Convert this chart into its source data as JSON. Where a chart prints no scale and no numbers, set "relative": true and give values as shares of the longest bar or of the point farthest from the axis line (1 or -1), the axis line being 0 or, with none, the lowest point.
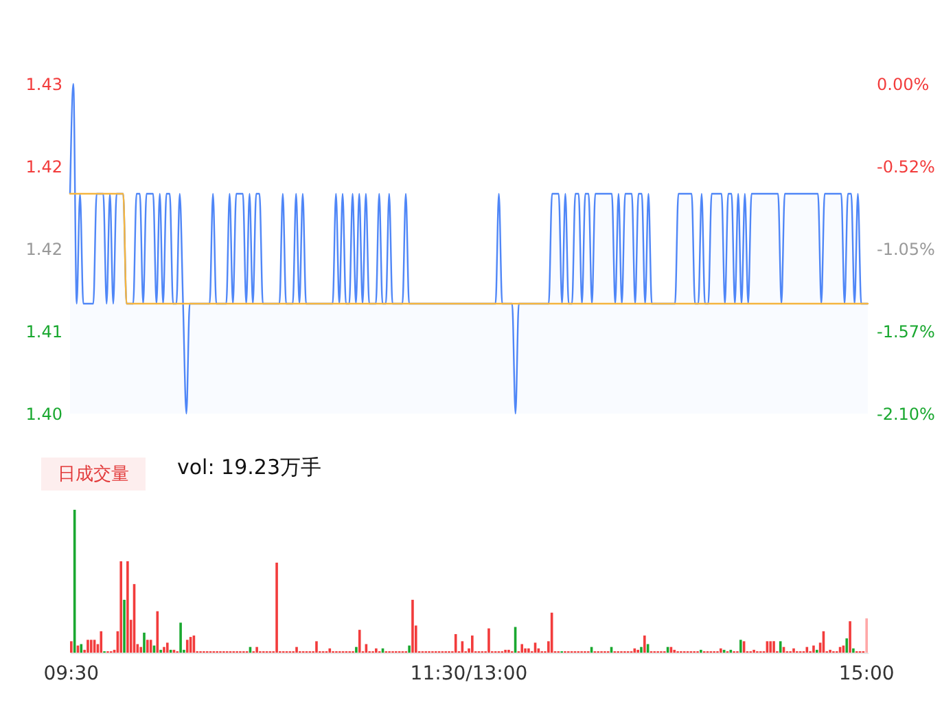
{
  "chart_data": [
    {
      "type": "line",
      "ylim": [
        1.4,
        1.43
      ],
      "yticks": [
        1.43,
        {
          "value": 1.4225,
          "label": "1.42"
        },
        {
          "value": 1.415,
          "label": "1.42"
        },
        {
          "value": 1.4075,
          "label": "1.41"
        },
        {
          "value": 1.4,
          "label": "1.40"
        }
      ],
      "y2lim": [
        -2.1,
        0
      ],
      "y2ticks": [
        {
          "value": 0,
          "label": "0.00%"
        },
        {
          "value": -0.525,
          "label": "-0.52%"
        },
        {
          "value": -1.05,
          "label": "-1.05%"
        },
        {
          "value": -1.575,
          "label": "-1.57%"
        },
        {
          "value": -2.1,
          "label": "-2.10%"
        }
      ],
      "tick_labels": "y",
      "categories": [
        null,
        null,
        null,
        null,
        null,
        null,
        null,
        null,
        null,
        null,
        null,
        null,
        null,
        null,
        null,
        null,
        null,
        null,
        null,
        null,
        null,
        null,
        null,
        null,
        null,
        null,
        null,
        null,
        null,
        null,
        null,
        null,
        null,
        null,
        null,
        null,
        null,
        null,
        null,
        null,
        null,
        null,
        null,
        null,
        null,
        null,
        null,
        null,
        null,
        null,
        null,
        null,
        null,
        null,
        null,
        null,
        null,
        null,
        null,
        null,
        null,
        null,
        null,
        null,
        null,
        null,
        null,
        null,
        null,
        null,
        null,
        null,
        null,
        null,
        null,
        null,
        null,
        null,
        null,
        null,
        null,
        null,
        null,
        null,
        null,
        null,
        null,
        null,
        null,
        null,
        null,
        null,
        null,
        null,
        null,
        null,
        null,
        null,
        null,
        null,
        null,
        null,
        null,
        null,
        null,
        null,
        null,
        null,
        null,
        null,
        null,
        null,
        null,
        null,
        null,
        null,
        null,
        null,
        null,
        null,
        null,
        null,
        null,
        null,
        null,
        null,
        null,
        null,
        null,
        null,
        null,
        null,
        null,
        null,
        null,
        null,
        null,
        null,
        null,
        null,
        null,
        null,
        null,
        null,
        null,
        null,
        null,
        null,
        null,
        null,
        null,
        null,
        null,
        null,
        null,
        null,
        null,
        null,
        null,
        null,
        null,
        null,
        null,
        null,
        null,
        null,
        null,
        null,
        null,
        null,
        null,
        null,
        null,
        null,
        null,
        null,
        null,
        null,
        null,
        null,
        null,
        null,
        null,
        null,
        null,
        null,
        null,
        null,
        null,
        null,
        null,
        null,
        null,
        null,
        null,
        null,
        null,
        null,
        null,
        null,
        null,
        null,
        null,
        null,
        null,
        null,
        null,
        null,
        null,
        null,
        null,
        null,
        null,
        null,
        null,
        null,
        null,
        null,
        null,
        null,
        null,
        null,
        null,
        null,
        null,
        null,
        null,
        null,
        null,
        null,
        null,
        null,
        null,
        null,
        null,
        null,
        null,
        null,
        null,
        null,
        null
      ],
      "series": [
        {
          "type": "area",
          "color": "#4f86f7",
          "values": [
            1.42,
            1.43,
            1.41,
            1.42,
            1.41,
            1.41,
            1.41,
            1.41,
            1.42,
            1.42,
            1.42,
            1.41,
            1.42,
            1.41,
            1.42,
            1.42,
            1.42,
            1.41,
            1.41,
            1.41,
            1.42,
            1.42,
            1.41,
            1.42,
            1.42,
            1.42,
            1.41,
            1.42,
            1.41,
            1.42,
            1.42,
            1.41,
            1.41,
            1.42,
            1.41,
            1.4,
            1.41,
            1.41,
            1.41,
            1.41,
            1.41,
            1.41,
            1.41,
            1.42,
            1.41,
            1.41,
            1.41,
            1.41,
            1.42,
            1.41,
            1.42,
            1.42,
            1.42,
            1.41,
            1.42,
            1.41,
            1.42,
            1.42,
            1.41,
            1.41,
            1.41,
            1.41,
            1.41,
            1.41,
            1.42,
            1.41,
            1.41,
            1.41,
            1.42,
            1.41,
            1.42,
            1.41,
            1.41,
            1.41,
            1.41,
            1.41,
            1.41,
            1.41,
            1.41,
            1.41,
            1.42,
            1.41,
            1.42,
            1.41,
            1.41,
            1.42,
            1.41,
            1.42,
            1.41,
            1.42,
            1.41,
            1.41,
            1.41,
            1.42,
            1.41,
            1.41,
            1.42,
            1.41,
            1.41,
            1.41,
            1.41,
            1.42,
            1.41,
            1.41,
            1.41,
            1.41,
            1.41,
            1.41,
            1.41,
            1.41,
            1.41,
            1.41,
            1.41,
            1.41,
            1.41,
            1.41,
            1.41,
            1.41,
            1.41,
            1.41,
            1.41,
            1.41,
            1.41,
            1.41,
            1.41,
            1.41,
            1.41,
            1.41,
            1.41,
            1.42,
            1.41,
            1.41,
            1.41,
            1.41,
            1.4,
            1.41,
            1.41,
            1.41,
            1.41,
            1.41,
            1.41,
            1.41,
            1.41,
            1.41,
            1.41,
            1.42,
            1.42,
            1.42,
            1.41,
            1.42,
            1.41,
            1.41,
            1.42,
            1.42,
            1.41,
            1.42,
            1.42,
            1.41,
            1.42,
            1.42,
            1.42,
            1.42,
            1.42,
            1.42,
            1.41,
            1.42,
            1.41,
            1.42,
            1.42,
            1.42,
            1.41,
            1.42,
            1.42,
            1.41,
            1.42,
            1.41,
            1.41,
            1.41,
            1.41,
            1.41,
            1.41,
            1.41,
            1.41,
            1.42,
            1.42,
            1.42,
            1.42,
            1.42,
            1.41,
            1.41,
            1.42,
            1.41,
            1.41,
            1.42,
            1.42,
            1.42,
            1.42,
            1.41,
            1.42,
            1.42,
            1.41,
            1.42,
            1.41,
            1.42,
            1.41,
            1.42,
            1.42,
            1.42,
            1.42,
            1.42,
            1.42,
            1.42,
            1.42,
            1.42,
            1.41,
            1.42,
            1.42,
            1.42,
            1.42,
            1.42,
            1.42,
            1.42,
            1.42,
            1.42,
            1.42,
            1.42,
            1.41,
            1.42,
            1.42,
            1.42,
            1.42,
            1.42,
            1.42,
            1.41,
            1.42,
            1.42,
            1.41,
            1.42,
            1.41,
            1.41,
            1.41
          ]
        },
        {
          "type": "line",
          "color": "#f5b53f",
          "values": [
            1.42,
            1.42,
            1.42,
            1.42,
            1.42,
            1.42,
            1.42,
            1.42,
            1.42,
            1.42,
            1.42,
            1.42,
            1.42,
            1.42,
            1.42,
            1.42,
            1.42,
            1.41,
            1.41,
            1.41,
            1.41,
            1.41,
            1.41,
            1.41,
            1.41,
            1.41,
            1.41,
            1.41,
            1.41,
            1.41,
            1.41,
            1.41,
            1.41,
            1.41,
            1.41,
            1.41,
            1.41,
            1.41,
            1.41,
            1.41,
            1.41,
            1.41,
            1.41,
            1.41,
            1.41,
            1.41,
            1.41,
            1.41,
            1.41,
            1.41,
            1.41,
            1.41,
            1.41,
            1.41,
            1.41,
            1.41,
            1.41,
            1.41,
            1.41,
            1.41,
            1.41,
            1.41,
            1.41,
            1.41,
            1.41,
            1.41,
            1.41,
            1.41,
            1.41,
            1.41,
            1.41,
            1.41,
            1.41,
            1.41,
            1.41,
            1.41,
            1.41,
            1.41,
            1.41,
            1.41,
            1.41,
            1.41,
            1.41,
            1.41,
            1.41,
            1.41,
            1.41,
            1.41,
            1.41,
            1.41,
            1.41,
            1.41,
            1.41,
            1.41,
            1.41,
            1.41,
            1.41,
            1.41,
            1.41,
            1.41,
            1.41,
            1.41,
            1.41,
            1.41,
            1.41,
            1.41,
            1.41,
            1.41,
            1.41,
            1.41,
            1.41,
            1.41,
            1.41,
            1.41,
            1.41,
            1.41,
            1.41,
            1.41,
            1.41,
            1.41,
            1.41,
            1.41,
            1.41,
            1.41,
            1.41,
            1.41,
            1.41,
            1.41,
            1.41,
            1.41,
            1.41,
            1.41,
            1.41,
            1.41,
            1.41,
            1.41,
            1.41,
            1.41,
            1.41,
            1.41,
            1.41,
            1.41,
            1.41,
            1.41,
            1.41,
            1.41,
            1.41,
            1.41,
            1.41,
            1.41,
            1.41,
            1.41,
            1.41,
            1.41,
            1.41,
            1.41,
            1.41,
            1.41,
            1.41,
            1.41,
            1.41,
            1.41,
            1.41,
            1.41,
            1.41,
            1.41,
            1.41,
            1.41,
            1.41,
            1.41,
            1.41,
            1.41,
            1.41,
            1.41,
            1.41,
            1.41,
            1.41,
            1.41,
            1.41,
            1.41,
            1.41,
            1.41,
            1.41,
            1.41,
            1.41,
            1.41,
            1.41,
            1.41,
            1.41,
            1.41,
            1.41,
            1.41,
            1.41,
            1.41,
            1.41,
            1.41,
            1.41,
            1.41,
            1.41,
            1.41,
            1.41,
            1.41,
            1.41,
            1.41,
            1.41,
            1.41,
            1.41,
            1.41,
            1.41,
            1.41,
            1.41,
            1.41,
            1.41,
            1.41,
            1.41,
            1.41,
            1.41,
            1.41,
            1.41,
            1.41,
            1.41,
            1.41,
            1.41,
            1.41,
            1.41,
            1.41,
            1.41,
            1.41,
            1.41,
            1.41,
            1.41,
            1.41,
            1.41,
            1.41,
            1.41,
            1.41,
            1.41,
            1.41,
            1.41,
            1.41,
            1.41
          ]
        }
      ]
    },
    {
      "type": "bar",
      "relative": true,
      "annotations": [
        "日成交量",
        "vol: 19.23万手"
      ],
      "categories": [
        "09:30",
        null,
        null,
        null,
        null,
        null,
        null,
        null,
        null,
        null,
        null,
        null,
        null,
        null,
        null,
        null,
        null,
        null,
        null,
        null,
        null,
        null,
        null,
        null,
        null,
        null,
        null,
        null,
        null,
        null,
        null,
        null,
        null,
        null,
        null,
        null,
        null,
        null,
        null,
        null,
        null,
        null,
        null,
        null,
        null,
        null,
        null,
        null,
        null,
        null,
        null,
        null,
        null,
        null,
        null,
        null,
        null,
        null,
        null,
        null,
        null,
        null,
        null,
        null,
        null,
        null,
        null,
        null,
        null,
        null,
        null,
        null,
        null,
        null,
        null,
        null,
        null,
        null,
        null,
        null,
        null,
        null,
        null,
        null,
        null,
        null,
        null,
        null,
        null,
        null,
        null,
        null,
        null,
        null,
        null,
        null,
        null,
        null,
        null,
        null,
        null,
        null,
        null,
        null,
        null,
        null,
        null,
        null,
        null,
        null,
        null,
        null,
        null,
        null,
        null,
        null,
        null,
        null,
        null,
        null,
        "11:30/13:00",
        null,
        null,
        null,
        null,
        null,
        null,
        null,
        null,
        null,
        null,
        null,
        null,
        null,
        null,
        null,
        null,
        null,
        null,
        null,
        null,
        null,
        null,
        null,
        null,
        null,
        null,
        null,
        null,
        null,
        null,
        null,
        null,
        null,
        null,
        null,
        null,
        null,
        null,
        null,
        null,
        null,
        null,
        null,
        null,
        null,
        null,
        null,
        null,
        null,
        null,
        null,
        null,
        null,
        null,
        null,
        null,
        null,
        null,
        null,
        null,
        null,
        null,
        null,
        null,
        null,
        null,
        null,
        null,
        null,
        null,
        null,
        null,
        null,
        null,
        null,
        null,
        null,
        null,
        null,
        null,
        null,
        null,
        null,
        null,
        null,
        null,
        null,
        null,
        null,
        null,
        null,
        null,
        null,
        null,
        null,
        null,
        null,
        null,
        null,
        null,
        null,
        null,
        null,
        null,
        null,
        null,
        null,
        null,
        null,
        null,
        null,
        null,
        null,
        null,
        null,
        null,
        null,
        null,
        null,
        "15:00"
      ],
      "values": [
        0.08,
        1,
        0.05,
        0.06,
        0.02,
        0.09,
        0.09,
        0.09,
        0.06,
        0.15,
        0.01,
        0.01,
        0.01,
        0.02,
        0.15,
        0.64,
        0.37,
        0.64,
        0.23,
        0.48,
        0.06,
        0.04,
        0.14,
        0.09,
        0.09,
        0.05,
        0.29,
        0.02,
        0.04,
        0.07,
        0.02,
        0.02,
        0.01,
        0.21,
        0.02,
        0.09,
        0.11,
        0.12,
        0.01,
        0.01,
        0.01,
        0.01,
        0.01,
        0.01,
        0.01,
        0.01,
        0.01,
        0.01,
        0.01,
        0.01,
        0.01,
        0.01,
        0.01,
        0.01,
        0.04,
        0.01,
        0.04,
        0.01,
        0.01,
        0.01,
        0.01,
        0.01,
        0.63,
        0.01,
        0.01,
        0.01,
        0.01,
        0.01,
        0.04,
        0.01,
        0.01,
        0.01,
        0.01,
        0.01,
        0.08,
        0.01,
        0.01,
        0.01,
        0.03,
        0.01,
        0.01,
        0.01,
        0.01,
        0.01,
        0.01,
        0.01,
        0.04,
        0.16,
        0.01,
        0.06,
        0.01,
        0.01,
        0.03,
        0.01,
        0.03,
        0.01,
        0.01,
        0.01,
        0.01,
        0.01,
        0.01,
        0.01,
        0.05,
        0.37,
        0.19,
        0.01,
        0.01,
        0.01,
        0.01,
        0.01,
        0.01,
        0.01,
        0.01,
        0.01,
        0.01,
        0.01,
        0.13,
        0.01,
        0.08,
        0.01,
        0.03,
        0.12,
        0.01,
        0.01,
        0.01,
        0.01,
        0.17,
        0.01,
        0.01,
        0.01,
        0.01,
        0.02,
        0.02,
        0.01,
        0.18,
        0.01,
        0.06,
        0.03,
        0.03,
        0.01,
        0.07,
        0.03,
        0.01,
        0.01,
        0.08,
        0.28,
        0.01,
        0.01,
        0.01,
        0.01,
        0.01,
        0.01,
        0.01,
        0.01,
        0.01,
        0.01,
        0.01,
        0.04,
        0.01,
        0.01,
        0.01,
        0.01,
        0.01,
        0.04,
        0.01,
        0.01,
        0.01,
        0.01,
        0.01,
        0.01,
        0.03,
        0.02,
        0.04,
        0.12,
        0.06,
        0.01,
        0.01,
        0.01,
        0.01,
        0.01,
        0.04,
        0.04,
        0.02,
        0.01,
        0.01,
        0.01,
        0.01,
        0.01,
        0.01,
        0.01,
        0.02,
        0.01,
        0.01,
        0.01,
        0.01,
        0.01,
        0.03,
        0.02,
        0.01,
        0.02,
        0.01,
        0.01,
        0.09,
        0.08,
        0.01,
        0.01,
        0.02,
        0.01,
        0.01,
        0.01,
        0.08,
        0.08,
        0.08,
        0.01,
        0.08,
        0.04,
        0.01,
        0.01,
        0.03,
        0.01,
        0.01,
        0.01,
        0.04,
        0.01,
        0.05,
        0.02,
        0.07,
        0.15,
        0.01,
        0.02,
        0.01,
        0.01,
        0.04,
        0.05,
        0.1,
        0.22,
        0.03,
        0.01,
        0.01,
        0.01,
        0.24
      ],
      "colors": [
        "#f23c3c",
        "#1aa830",
        "#f23c3c",
        "#1aa830",
        "#f23c3c",
        "#f23c3c",
        "#f23c3c",
        "#f23c3c",
        "#f23c3c",
        "#f23c3c",
        "#1aa830",
        "#f23c3c",
        "#f23c3c",
        "#f23c3c",
        "#f23c3c",
        "#f23c3c",
        "#1aa830",
        "#f23c3c",
        "#f23c3c",
        "#f23c3c",
        "#f23c3c",
        "#f23c3c",
        "#1aa830",
        "#f23c3c",
        "#f23c3c",
        "#1aa830",
        "#f23c3c",
        "#1aa830",
        "#f23c3c",
        "#f23c3c",
        "#1aa830",
        "#f23c3c",
        "#f23c3c",
        "#1aa830",
        "#1aa830",
        "#f23c3c",
        "#f23c3c",
        "#f23c3c",
        "#f23c3c",
        "#f23c3c",
        "#f23c3c",
        "#f23c3c",
        "#f23c3c",
        "#f23c3c",
        "#f23c3c",
        "#f23c3c",
        "#f23c3c",
        "#f23c3c",
        "#f23c3c",
        "#f23c3c",
        "#f23c3c",
        "#f23c3c",
        "#f23c3c",
        "#f23c3c",
        "#1aa830",
        "#f23c3c",
        "#f23c3c",
        "#f23c3c",
        "#f23c3c",
        "#f23c3c",
        "#f23c3c",
        "#f23c3c",
        "#f23c3c",
        "#f23c3c",
        "#f23c3c",
        "#f23c3c",
        "#f23c3c",
        "#f23c3c",
        "#f23c3c",
        "#f23c3c",
        "#f23c3c",
        "#f23c3c",
        "#f23c3c",
        "#f23c3c",
        "#f23c3c",
        "#f23c3c",
        "#f23c3c",
        "#f23c3c",
        "#f23c3c",
        "#f23c3c",
        "#f23c3c",
        "#f23c3c",
        "#f23c3c",
        "#f23c3c",
        "#f23c3c",
        "#f23c3c",
        "#1aa830",
        "#f23c3c",
        "#f23c3c",
        "#f23c3c",
        "#f23c3c",
        "#f23c3c",
        "#f23c3c",
        "#f23c3c",
        "#1aa830",
        "#f23c3c",
        "#f23c3c",
        "#f23c3c",
        "#f23c3c",
        "#f23c3c",
        "#f23c3c",
        "#f23c3c",
        "#1aa830",
        "#f23c3c",
        "#f23c3c",
        "#f23c3c",
        "#f23c3c",
        "#f23c3c",
        "#f23c3c",
        "#f23c3c",
        "#f23c3c",
        "#f23c3c",
        "#f23c3c",
        "#f23c3c",
        "#f23c3c",
        "#f23c3c",
        "#f23c3c",
        "#f23c3c",
        "#f23c3c",
        "#f23c3c",
        "#f23c3c",
        "#f23c3c",
        "#f23c3c",
        "#f23c3c",
        "#f23c3c",
        "#f23c3c",
        "#f23c3c",
        "#f23c3c",
        "#f23c3c",
        "#f23c3c",
        "#f23c3c",
        "#f23c3c",
        "#f23c3c",
        "#f23c3c",
        "#1aa830",
        "#f23c3c",
        "#f23c3c",
        "#f23c3c",
        "#f23c3c",
        "#f23c3c",
        "#f23c3c",
        "#f23c3c",
        "#f23c3c",
        "#f23c3c",
        "#f23c3c",
        "#f23c3c",
        "#f23c3c",
        "#f23c3c",
        "#1aa830",
        "#f23c3c",
        "#f23c3c",
        "#f23c3c",
        "#f23c3c",
        "#f23c3c",
        "#f23c3c",
        "#f23c3c",
        "#f23c3c",
        "#1aa830",
        "#f23c3c",
        "#f23c3c",
        "#f23c3c",
        "#f23c3c",
        "#f23c3c",
        "#1aa830",
        "#f23c3c",
        "#f23c3c",
        "#f23c3c",
        "#f23c3c",
        "#f23c3c",
        "#f23c3c",
        "#f23c3c",
        "#f23c3c",
        "#1aa830",
        "#f23c3c",
        "#1aa830",
        "#f23c3c",
        "#f23c3c",
        "#f23c3c",
        "#f23c3c",
        "#f23c3c",
        "#1aa830",
        "#f23c3c",
        "#f23c3c",
        "#f23c3c",
        "#f23c3c",
        "#f23c3c",
        "#f23c3c",
        "#f23c3c",
        "#f23c3c",
        "#f23c3c",
        "#1aa830",
        "#f23c3c",
        "#f23c3c",
        "#f23c3c",
        "#f23c3c",
        "#f23c3c",
        "#f23c3c",
        "#1aa830",
        "#f23c3c",
        "#1aa830",
        "#f23c3c",
        "#f23c3c",
        "#1aa830",
        "#f23c3c",
        "#f23c3c",
        "#f23c3c",
        "#f23c3c",
        "#f23c3c",
        "#f23c3c",
        "#f23c3c",
        "#f23c3c",
        "#f23c3c",
        "#f23c3c",
        "#f23c3c",
        "#1aa830",
        "#f23c3c",
        "#f23c3c",
        "#f23c3c",
        "#f23c3c",
        "#f23c3c",
        "#f23c3c",
        "#f23c3c",
        "#f23c3c",
        "#f23c3c",
        "#f23c3c",
        "#1aa830",
        "#f23c3c",
        "#f23c3c",
        "#f23c3c",
        "#f23c3c",
        "#f23c3c",
        "#f23c3c",
        "#f23c3c",
        "#f23c3c",
        "#1aa830",
        "#f23c3c",
        "#1aa830",
        "#f23c3c",
        "#f23c3c",
        "#f23c3c",
        "#ffa8a8"
      ]
    }
  ]
}
